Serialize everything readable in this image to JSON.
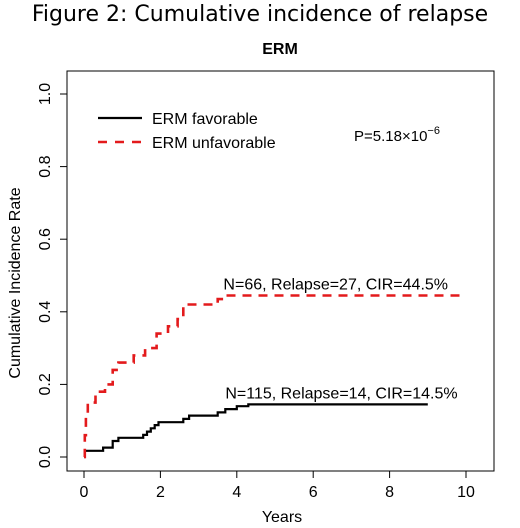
{
  "figure_title": "Figure 2: Cumulative incidence of relapse",
  "chart_data": {
    "type": "line",
    "title": "ERM",
    "xlabel": "Years",
    "ylabel": "Cumulative Incidence Rate",
    "xlim": [
      0,
      10
    ],
    "ylim": [
      0,
      1
    ],
    "xticks": [
      0,
      2,
      4,
      6,
      8,
      10
    ],
    "yticks": [
      0.0,
      0.2,
      0.4,
      0.6,
      0.8,
      1.0
    ],
    "ytick_labels": [
      "0.0",
      "0.2",
      "0.4",
      "0.6",
      "0.8",
      "1.0"
    ],
    "legend_position": "top-left",
    "grid": false,
    "pvalue": {
      "prefix": "P=5.18",
      "times": "×",
      "base": "10",
      "exp": "−6"
    },
    "series": [
      {
        "name": "ERM favorable",
        "color": "#000000",
        "dash": "solid",
        "annotation": "N=115, Relapse=14, CIR=14.5%",
        "steps": [
          [
            0.0,
            0.0
          ],
          [
            0.02,
            0.017
          ],
          [
            0.5,
            0.026
          ],
          [
            0.75,
            0.044
          ],
          [
            0.9,
            0.053
          ],
          [
            1.55,
            0.061
          ],
          [
            1.65,
            0.07
          ],
          [
            1.75,
            0.079
          ],
          [
            1.85,
            0.088
          ],
          [
            1.95,
            0.096
          ],
          [
            2.6,
            0.105
          ],
          [
            2.75,
            0.114
          ],
          [
            3.5,
            0.123
          ],
          [
            3.7,
            0.132
          ],
          [
            4.0,
            0.14
          ],
          [
            4.3,
            0.145
          ],
          [
            9.0,
            0.145
          ]
        ]
      },
      {
        "name": "ERM unfavorable",
        "color": "#e31a1c",
        "dash": "dashed",
        "annotation": "N=66, Relapse=27, CIR=44.5%",
        "steps": [
          [
            0.0,
            0.0
          ],
          [
            0.02,
            0.06
          ],
          [
            0.05,
            0.12
          ],
          [
            0.1,
            0.15
          ],
          [
            0.3,
            0.18
          ],
          [
            0.55,
            0.2
          ],
          [
            0.75,
            0.24
          ],
          [
            0.9,
            0.26
          ],
          [
            1.3,
            0.28
          ],
          [
            1.6,
            0.3
          ],
          [
            1.9,
            0.34
          ],
          [
            2.2,
            0.36
          ],
          [
            2.45,
            0.38
          ],
          [
            2.6,
            0.42
          ],
          [
            3.5,
            0.435
          ],
          [
            3.65,
            0.445
          ],
          [
            10.0,
            0.445
          ]
        ]
      }
    ]
  }
}
